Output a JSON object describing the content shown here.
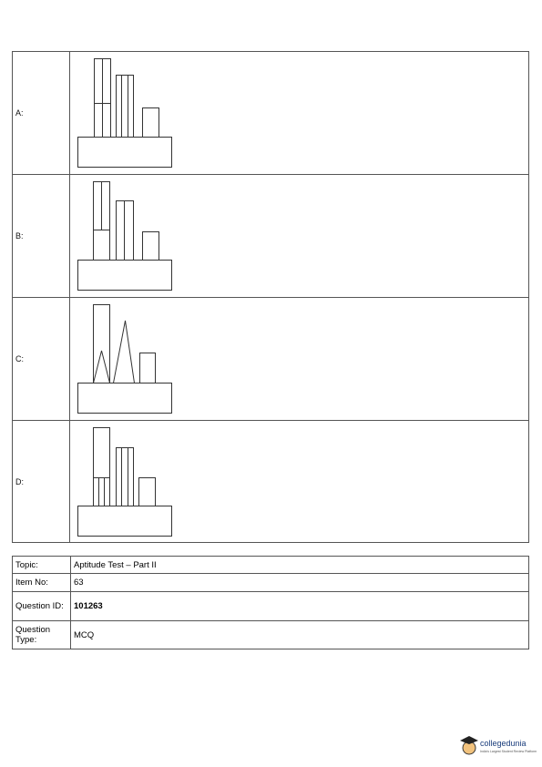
{
  "options": [
    {
      "label": "A:"
    },
    {
      "label": "B:"
    },
    {
      "label": "C:"
    },
    {
      "label": "D:"
    }
  ],
  "meta": {
    "rows": [
      [
        "Topic:",
        "Aptitude Test – Part II"
      ],
      [
        "Item No:",
        "63"
      ],
      [
        "Question ID:",
        "101263"
      ],
      [
        "Question Type:",
        "MCQ"
      ]
    ]
  },
  "logo": {
    "name": "collegedunia",
    "tagline": "India's Largest Student Review Platform"
  }
}
